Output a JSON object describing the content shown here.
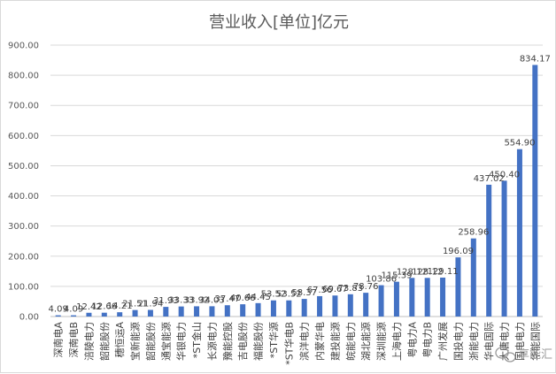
{
  "chart_data": {
    "type": "bar",
    "title": "营业收入[单位]亿元",
    "xlabel": "",
    "ylabel": "",
    "ylim": [
      0,
      900
    ],
    "y_ticks": [
      "0.00",
      "100.00",
      "200.00",
      "300.00",
      "400.00",
      "500.00",
      "600.00",
      "700.00",
      "800.00",
      "900.00"
    ],
    "grid": true,
    "legend": "none",
    "bar_color": "#4472c4",
    "categories": [
      "深南电A",
      "深南电B",
      "涪陵电力",
      "韶能股份",
      "穗恒运A",
      "宝新能源",
      "韶能股份",
      "通宝能源",
      "华银电力",
      "*ST金山",
      "长源电力",
      "豫能控股",
      "吉电股份",
      "福能股份",
      "*ST华源",
      "*ST华电B",
      "滨洋电力",
      "内蒙华电",
      "建投能源",
      "皖能电力",
      "湖北能源",
      "深圳能源",
      "上海电力",
      "粤电力A",
      "粤电力B",
      "广州发展",
      "国投电力",
      "浙能电力",
      "华电国际",
      "大唐电力",
      "国电电力",
      "华能国际"
    ],
    "values": [
      4.09,
      4.09,
      12.42,
      12.66,
      14.21,
      21.51,
      21.94,
      31.93,
      33.33,
      33.92,
      34.03,
      37.47,
      40.66,
      44.45,
      53.52,
      53.52,
      58.37,
      67.56,
      69.67,
      73.83,
      78.76,
      103.86,
      115.39,
      128.12,
      128.12,
      129.11,
      196.09,
      258.96,
      437.02,
      450.4,
      554.9,
      834.17
    ],
    "data_labels": [
      "4.09",
      "4.09",
      "12.42",
      "12.66",
      "14.21",
      "21.51",
      "21.94",
      "31.93",
      "33.33",
      "33.92",
      "34.03",
      "37.47",
      "40.66",
      "44.45",
      "53.52",
      "53.52",
      "58.37",
      "67.56",
      "69.67",
      "73.83",
      "78.76",
      "103.86",
      "115.39",
      "128.12",
      "128.12",
      "129.11",
      "196.09",
      "258.96",
      "437.02",
      "450.40",
      "554.90",
      "834.17"
    ]
  },
  "watermark": {
    "icon": "wechat-icon",
    "text": "享能汇"
  }
}
